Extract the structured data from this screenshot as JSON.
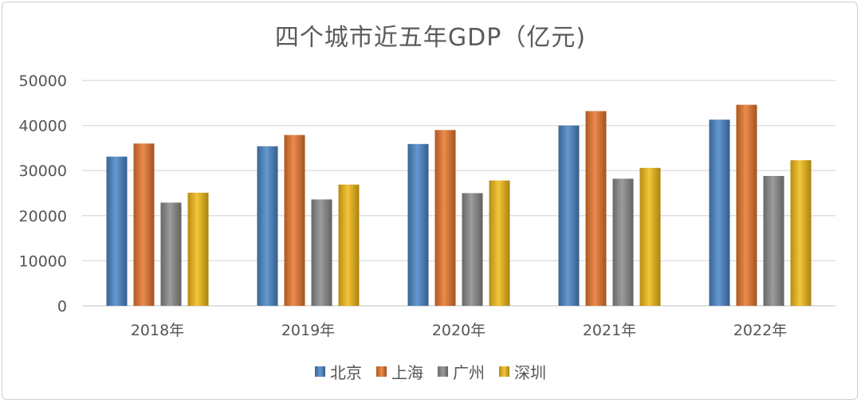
{
  "chart_data": {
    "type": "bar",
    "title": "四个城市近五年GDP（亿元)",
    "categories": [
      "2018年",
      "2019年",
      "2020年",
      "2021年",
      "2022年"
    ],
    "series": [
      {
        "name": "北京",
        "values": [
          33100,
          35400,
          35900,
          40000,
          41300
        ],
        "color": "#4a86c8"
      },
      {
        "name": "上海",
        "values": [
          36000,
          37900,
          39000,
          43200,
          44600
        ],
        "color": "#e8762c"
      },
      {
        "name": "广州",
        "values": [
          22900,
          23600,
          25000,
          28200,
          28800
        ],
        "color": "#8a8a8a"
      },
      {
        "name": "深圳",
        "values": [
          25100,
          26900,
          27800,
          30600,
          32300
        ],
        "color": "#f2bb16"
      }
    ],
    "y_ticks": [
      "0",
      "10000",
      "20000",
      "30000",
      "40000",
      "50000"
    ],
    "ylim": [
      0,
      50000
    ],
    "grid": true,
    "legend_position": "bottom"
  }
}
